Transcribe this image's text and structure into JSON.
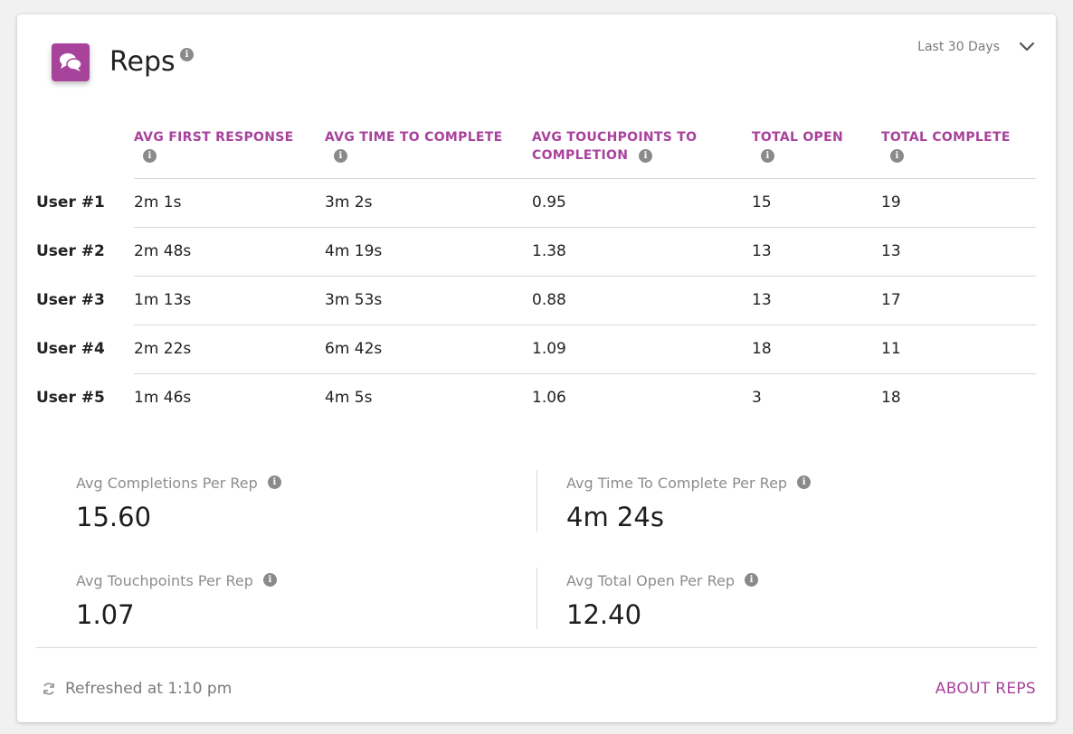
{
  "widget": {
    "title": "Reps",
    "date_range": "Last 30 Days",
    "accent_color": "#a8439c"
  },
  "table": {
    "columns": [
      "AVG FIRST RESPONSE",
      "AVG TIME TO COMPLETE",
      "AVG TOUCHPOINTS TO COMPLETION",
      "TOTAL OPEN",
      "TOTAL COMPLETE"
    ],
    "rows": [
      {
        "user": "User #1",
        "avg_first_response": "2m 1s",
        "avg_time_to_complete": "3m 2s",
        "avg_touchpoints": "0.95",
        "total_open": "15",
        "total_complete": "19"
      },
      {
        "user": "User #2",
        "avg_first_response": "2m 48s",
        "avg_time_to_complete": "4m 19s",
        "avg_touchpoints": "1.38",
        "total_open": "13",
        "total_complete": "13"
      },
      {
        "user": "User #3",
        "avg_first_response": "1m 13s",
        "avg_time_to_complete": "3m 53s",
        "avg_touchpoints": "0.88",
        "total_open": "13",
        "total_complete": "17"
      },
      {
        "user": "User #4",
        "avg_first_response": "2m 22s",
        "avg_time_to_complete": "6m 42s",
        "avg_touchpoints": "1.09",
        "total_open": "18",
        "total_complete": "11"
      },
      {
        "user": "User #5",
        "avg_first_response": "1m 46s",
        "avg_time_to_complete": "4m 5s",
        "avg_touchpoints": "1.06",
        "total_open": "3",
        "total_complete": "18"
      }
    ]
  },
  "stats": {
    "completions": {
      "label": "Avg Completions Per Rep",
      "value": "15.60"
    },
    "time_to_complete": {
      "label": "Avg Time To Complete Per Rep",
      "value": "4m 24s"
    },
    "touchpoints": {
      "label": "Avg Touchpoints Per Rep",
      "value": "1.07"
    },
    "total_open": {
      "label": "Avg Total Open Per Rep",
      "value": "12.40"
    }
  },
  "footer": {
    "refreshed": "Refreshed at 1:10 pm",
    "about_link": "ABOUT REPS"
  },
  "icons": {
    "app": "chat-bubbles-icon",
    "info": "info-icon",
    "dropdown": "chevron-down-icon",
    "refresh": "refresh-icon"
  }
}
